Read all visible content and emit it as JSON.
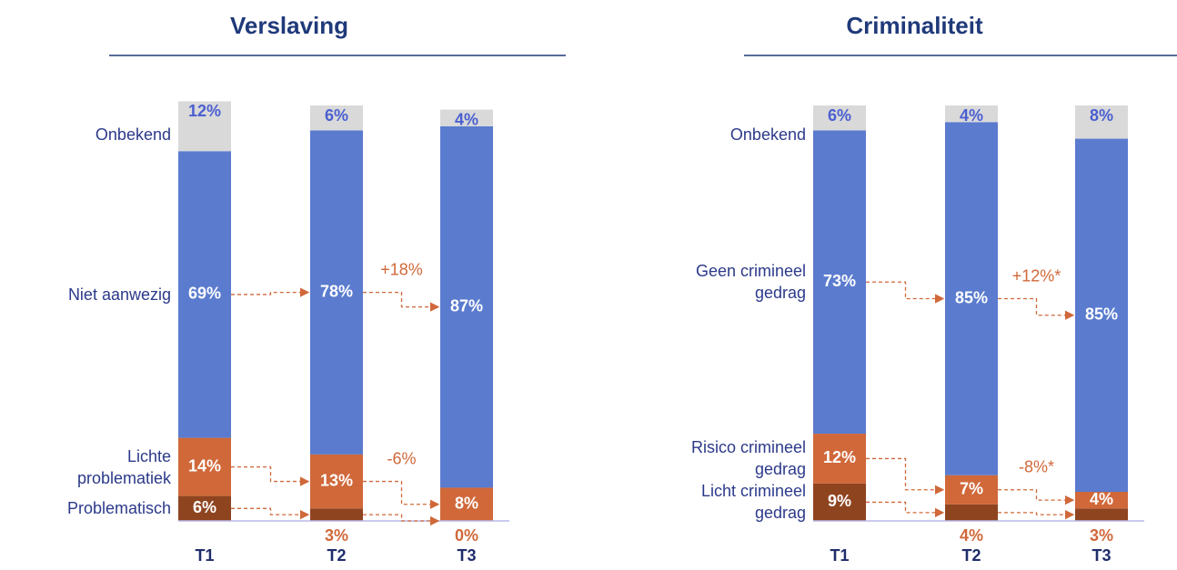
{
  "chart_data": [
    {
      "type": "stacked_bar",
      "title": "Verslaving",
      "categories": [
        "T1",
        "T2",
        "T3"
      ],
      "ylim": [
        0,
        100
      ],
      "series": [
        {
          "name": "Problematisch",
          "color": "#8f4420",
          "values": [
            6,
            3,
            0
          ],
          "value_labels": [
            "6%",
            "3%",
            "0%"
          ]
        },
        {
          "name": "Lichte problematiek",
          "color": "#d0683a",
          "values": [
            14,
            13,
            8
          ],
          "value_labels": [
            "14%",
            "13%",
            "8%"
          ],
          "change": "-6%"
        },
        {
          "name": "Niet aanwezig",
          "color": "#5a7bce",
          "values": [
            69,
            78,
            87
          ],
          "value_labels": [
            "69%",
            "78%",
            "87%"
          ],
          "change": "+18%"
        },
        {
          "name": "Onbekend",
          "color": "#d9d9d9",
          "values": [
            12,
            6,
            4
          ],
          "value_labels": [
            "12%",
            "6%",
            "4%"
          ]
        }
      ]
    },
    {
      "type": "stacked_bar",
      "title": "Criminaliteit",
      "categories": [
        "T1",
        "T2",
        "T3"
      ],
      "ylim": [
        0,
        100
      ],
      "series": [
        {
          "name": "Licht crimineel gedrag",
          "color": "#8f4420",
          "values": [
            9,
            4,
            3
          ],
          "value_labels": [
            "9%",
            "4%",
            "3%"
          ]
        },
        {
          "name": "Risico crimineel gedrag",
          "color": "#d0683a",
          "values": [
            12,
            7,
            4
          ],
          "value_labels": [
            "12%",
            "7%",
            "4%"
          ],
          "change": "-8%*"
        },
        {
          "name": "Geen crimineel gedrag",
          "color": "#5a7bce",
          "values": [
            73,
            85,
            85
          ],
          "value_labels": [
            "73%",
            "85%",
            "85%"
          ],
          "change": "+12%*"
        },
        {
          "name": "Onbekend",
          "color": "#d9d9d9",
          "values": [
            6,
            4,
            8
          ],
          "value_labels": [
            "6%",
            "4%",
            "8%"
          ]
        }
      ]
    }
  ]
}
